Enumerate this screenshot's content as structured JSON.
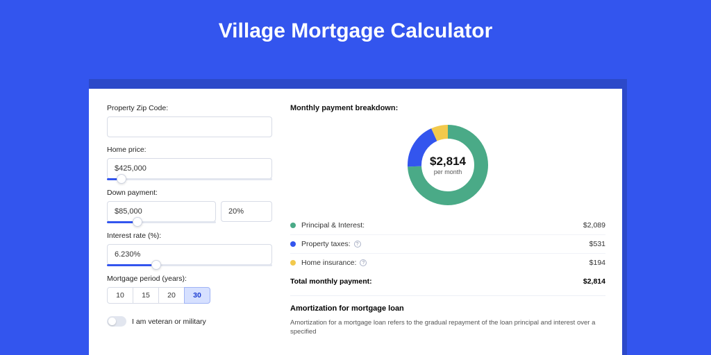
{
  "title": "Village Mortgage Calculator",
  "colors": {
    "page_bg": "#3355ee",
    "shadow_bg": "#2c49c9",
    "card_bg": "#ffffff",
    "principal": "#4aaa87",
    "taxes": "#3355ee",
    "insurance": "#f2c94c"
  },
  "form": {
    "zip": {
      "label": "Property Zip Code:",
      "value": "",
      "placeholder": ""
    },
    "price": {
      "label": "Home price:",
      "value": "$425,000",
      "slider_pct": 9
    },
    "down": {
      "label": "Down payment:",
      "amount": "$85,000",
      "percent": "20%",
      "slider_pct": 28
    },
    "rate": {
      "label": "Interest rate (%):",
      "value": "6.230%",
      "slider_pct": 30
    },
    "period": {
      "label": "Mortgage period (years):",
      "options": [
        "10",
        "15",
        "20",
        "30"
      ],
      "active": "30"
    },
    "veteran_label": "I am veteran or military",
    "veteran_on": false
  },
  "breakdown": {
    "title": "Monthly payment breakdown:",
    "total_amount": "$2,814",
    "total_sub": "per month",
    "items": [
      {
        "label": "Principal & Interest:",
        "value": "$2,089",
        "pct": 74.2,
        "info": false,
        "color": "#4aaa87"
      },
      {
        "label": "Property taxes:",
        "value": "$531",
        "pct": 18.9,
        "info": true,
        "color": "#3355ee"
      },
      {
        "label": "Home insurance:",
        "value": "$194",
        "pct": 6.9,
        "info": true,
        "color": "#f2c94c"
      }
    ],
    "total_label": "Total monthly payment:",
    "total_value": "$2,814"
  },
  "amort": {
    "title": "Amortization for mortgage loan",
    "text": "Amortization for a mortgage loan refers to the gradual repayment of the loan principal and interest over a specified"
  },
  "donut": {
    "radius": 48,
    "stroke": 20
  }
}
